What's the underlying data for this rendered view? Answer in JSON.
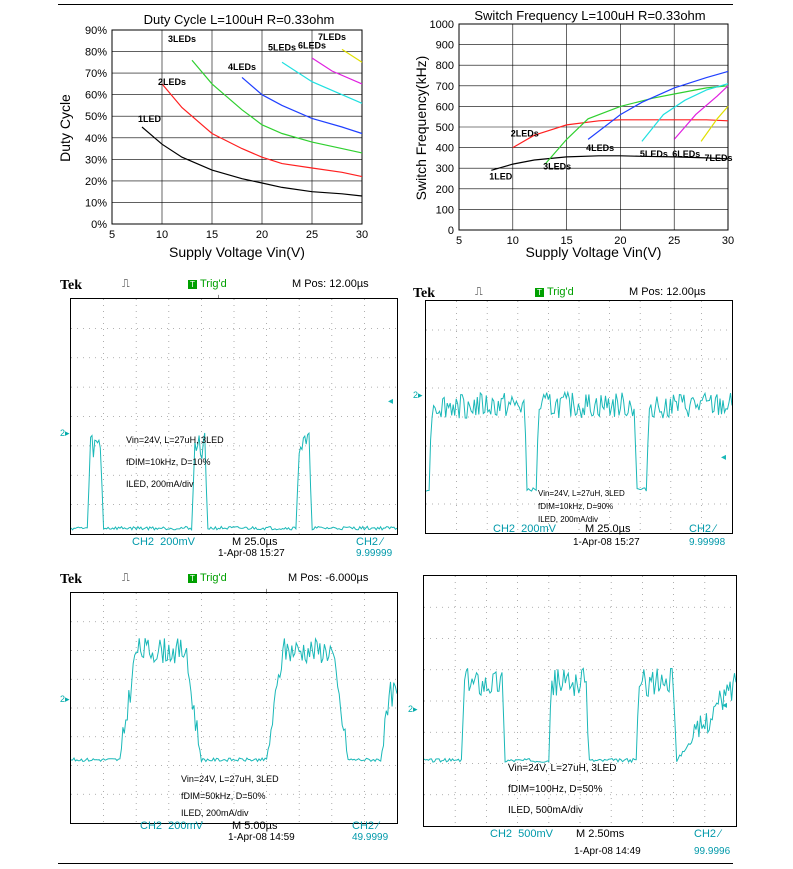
{
  "chart_data": [
    {
      "type": "line",
      "title": "Duty Cycle L=100uH R=0.33ohm",
      "xlabel": "Supply Voltage Vin(V)",
      "ylabel": "Duty Cycle",
      "xlim": [
        5,
        30
      ],
      "ylim": [
        0,
        90
      ],
      "xticks": [
        "5",
        "10",
        "15",
        "20",
        "25",
        "30"
      ],
      "yticks": [
        "0%",
        "10%",
        "20%",
        "30%",
        "40%",
        "50%",
        "60%",
        "70%",
        "80%",
        "90%"
      ],
      "grid": true,
      "series": [
        {
          "name": "1LED",
          "color": "#000000",
          "x": [
            8,
            10,
            12,
            15,
            18,
            20,
            22,
            25,
            28,
            30
          ],
          "values": [
            45,
            37,
            31,
            25,
            21,
            19,
            17,
            15,
            14,
            13
          ]
        },
        {
          "name": "2LEDs",
          "color": "#ff2020",
          "x": [
            10,
            12,
            15,
            18,
            20,
            22,
            25,
            28,
            30
          ],
          "values": [
            65,
            54,
            42,
            35,
            31,
            28,
            26,
            24,
            22
          ]
        },
        {
          "name": "3LEDs",
          "color": "#30d030",
          "x": [
            13,
            15,
            18,
            20,
            22,
            25,
            28,
            30
          ],
          "values": [
            76,
            65,
            53,
            46,
            42,
            38,
            35,
            33
          ]
        },
        {
          "name": "4LEDs",
          "color": "#2040ff",
          "x": [
            18,
            20,
            22,
            25,
            28,
            30
          ],
          "values": [
            68,
            60,
            55,
            49,
            45,
            42
          ]
        },
        {
          "name": "5LEDs",
          "color": "#20e0e0",
          "x": [
            22,
            25,
            28,
            30
          ],
          "values": [
            75,
            66,
            60,
            56
          ]
        },
        {
          "name": "6LEDs",
          "color": "#e020e0",
          "x": [
            25,
            27,
            30
          ],
          "values": [
            77,
            71,
            65
          ]
        },
        {
          "name": "7LEDs",
          "color": "#e0e000",
          "x": [
            28,
            30
          ],
          "values": [
            81,
            75
          ]
        }
      ]
    },
    {
      "type": "line",
      "title": "Switch Frequency L=100uH R=0.33ohm",
      "xlabel": "Supply Voltage Vin(V)",
      "ylabel": "Switch Frequency(kHz)",
      "xlim": [
        5,
        30
      ],
      "ylim": [
        0,
        1000
      ],
      "xticks": [
        "5",
        "10",
        "15",
        "20",
        "25",
        "30"
      ],
      "yticks": [
        "0",
        "100",
        "200",
        "300",
        "400",
        "500",
        "600",
        "700",
        "800",
        "900",
        "1000"
      ],
      "grid": true,
      "series": [
        {
          "name": "1LED",
          "color": "#000000",
          "x": [
            8,
            10,
            12,
            15,
            18,
            20,
            22,
            25,
            28,
            30
          ],
          "values": [
            290,
            320,
            340,
            355,
            360,
            360,
            358,
            355,
            350,
            345
          ]
        },
        {
          "name": "2LEDs",
          "color": "#ff2020",
          "x": [
            10,
            12,
            15,
            18,
            20,
            22,
            25,
            28,
            30
          ],
          "values": [
            400,
            460,
            510,
            530,
            535,
            535,
            535,
            535,
            530
          ]
        },
        {
          "name": "3LEDs",
          "color": "#30d030",
          "x": [
            13,
            15,
            17,
            20,
            23,
            25,
            28,
            30
          ],
          "values": [
            320,
            440,
            540,
            600,
            640,
            660,
            690,
            700
          ]
        },
        {
          "name": "4LEDs",
          "color": "#2040ff",
          "x": [
            17,
            20,
            22,
            25,
            28,
            30
          ],
          "values": [
            440,
            560,
            620,
            690,
            740,
            770
          ]
        },
        {
          "name": "5LEDs",
          "color": "#20e0e0",
          "x": [
            22,
            24,
            26,
            28,
            30
          ],
          "values": [
            430,
            560,
            630,
            680,
            710
          ]
        },
        {
          "name": "6LEDs",
          "color": "#e020e0",
          "x": [
            25,
            27,
            29,
            30
          ],
          "values": [
            440,
            560,
            650,
            700
          ]
        },
        {
          "name": "7LEDs",
          "color": "#e0e000",
          "x": [
            27.5,
            29,
            30
          ],
          "values": [
            430,
            540,
            600
          ]
        }
      ]
    },
    {
      "type": "line",
      "xlim": [
        0,
        100
      ],
      "ylim": [
        0,
        8
      ],
      "series": [
        {
          "color": "#1ab8b8",
          "x": [
            0,
            5,
            6,
            9,
            10,
            37,
            38,
            41,
            42,
            69,
            70,
            73,
            74,
            100
          ],
          "values": [
            0.2,
            0.2,
            3.0,
            3.0,
            0.2,
            0.2,
            3.0,
            3.0,
            0.2,
            0.2,
            3.0,
            3.0,
            0.2,
            0.2
          ]
        }
      ]
    },
    {
      "type": "line",
      "xlim": [
        0,
        100
      ],
      "ylim": [
        0,
        8
      ],
      "series": [
        {
          "color": "#1ab8b8",
          "x": [
            0,
            1,
            2,
            32,
            33,
            36,
            37,
            68,
            69,
            72,
            73,
            100
          ],
          "values": [
            1.5,
            1.5,
            4.4,
            4.4,
            1.5,
            1.5,
            4.4,
            4.4,
            1.5,
            1.5,
            4.4,
            4.4
          ]
        }
      ]
    },
    {
      "type": "line",
      "xlim": [
        0,
        100
      ],
      "ylim": [
        0,
        8
      ],
      "series": [
        {
          "color": "#1ab8b8",
          "x": [
            0,
            15,
            20,
            35,
            40,
            60,
            65,
            80,
            85,
            92,
            95,
            98,
            100
          ],
          "values": [
            2.2,
            2.2,
            6.0,
            6.0,
            2.2,
            2.2,
            6.0,
            6.0,
            2.2,
            2.2,
            2.2,
            4.5,
            4.5
          ]
        }
      ]
    },
    {
      "type": "line",
      "xlim": [
        0,
        100
      ],
      "ylim": [
        0,
        8
      ],
      "series": [
        {
          "color": "#1ab8b8",
          "x": [
            0,
            12,
            13,
            25,
            26,
            40,
            41,
            52,
            53,
            68,
            69,
            80,
            81,
            100
          ],
          "values": [
            2.1,
            2.1,
            4.6,
            4.6,
            2.1,
            2.1,
            4.6,
            4.6,
            2.1,
            2.1,
            4.6,
            4.6,
            2.1,
            4.6
          ]
        }
      ]
    }
  ],
  "scopes": [
    {
      "brand": "Tek",
      "trig": "Trig'd",
      "mpos": "M Pos: 12.00µs",
      "notes": [
        "Vin=24V, L=27uH, 3LED",
        "fDIM=10kHz, D=10%",
        "ILED, 200mA/div"
      ],
      "ch": "CH2",
      "volts": "200mV",
      "time": "M 25.0µs",
      "date": "1-Apr-08 15:27",
      "trigch": "CH2 ∕",
      "freq": "9.99999"
    },
    {
      "brand": "Tek",
      "trig": "Trig'd",
      "mpos": "M Pos: 12.00µs",
      "notes": [
        "Vin=24V, L=27uH, 3LED",
        "fDIM=10kHz, D=90%",
        "ILED, 200mA/div"
      ],
      "ch": "CH2",
      "volts": "200mV",
      "time": "M 25.0µs",
      "date": "1-Apr-08 15:27",
      "trigch": "CH2 ∕",
      "freq": "9.99998"
    },
    {
      "brand": "Tek",
      "trig": "Trig'd",
      "mpos": "M Pos: -6.000µs",
      "notes": [
        "Vin=24V, L=27uH, 3LED",
        "fDIM=50kHz, D=50%",
        "ILED, 200mA/div"
      ],
      "ch": "CH2",
      "volts": "200mV",
      "time": "M 5.00µs",
      "date": "1-Apr-08 14:59",
      "trigch": "CH2 ∕",
      "freq": "49.9999"
    },
    {
      "notes": [
        "Vin=24V, L=27uH, 3LED",
        "fDIM=100Hz, D=50%",
        "ILED, 500mA/div"
      ],
      "ch": "CH2",
      "volts": "500mV",
      "time": "M 2.50ms",
      "date": "1-Apr-08 14:49",
      "trigch": "CH2 ∕",
      "freq": "99.9996"
    }
  ]
}
